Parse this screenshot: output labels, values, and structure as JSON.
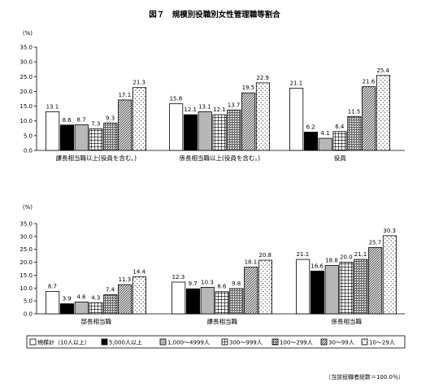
{
  "title": "図７　規模別役職別女性管理職等割合",
  "note": "（当該役職者総数＝100.0％）",
  "legend": [
    "規模計（10人以上）",
    "5,000人以上",
    "1,000～4999人",
    "300～999人",
    "100～299人",
    "30～99人",
    "10～29人"
  ],
  "chart_data": [
    {
      "type": "bar",
      "unit": "(%)",
      "ylim": [
        0,
        35
      ],
      "yticks": [
        "0.0",
        "5.0",
        "10.0",
        "15.0",
        "20.0",
        "25.0",
        "30.0",
        "35.0"
      ],
      "categories": [
        "課長相当職以上(役員を含む。)",
        "係長相当職以上(役員を含む。)",
        "役員"
      ],
      "series": [
        {
          "name": "規模計（10人以上）",
          "values": [
            13.1,
            15.8,
            21.1
          ]
        },
        {
          "name": "5,000人以上",
          "values": [
            8.6,
            12.1,
            6.2
          ]
        },
        {
          "name": "1,000～4999人",
          "values": [
            8.7,
            13.1,
            4.1
          ]
        },
        {
          "name": "300～999人",
          "values": [
            7.3,
            12.1,
            6.4
          ]
        },
        {
          "name": "100～299人",
          "values": [
            9.3,
            13.7,
            11.5
          ]
        },
        {
          "name": "30～99人",
          "values": [
            17.1,
            19.5,
            21.6
          ]
        },
        {
          "name": "10～29人",
          "values": [
            21.3,
            22.9,
            25.4
          ]
        }
      ],
      "labels": [
        [
          "13.1",
          "8.6",
          "8.7",
          "7.3",
          "9.3",
          "17.1",
          "21.3"
        ],
        [
          "15.8",
          "12.1",
          "13.1",
          "12.1",
          "13.7",
          "19.5",
          "22.9"
        ],
        [
          "21.1",
          "6.2",
          "4.1",
          "6.4",
          "11.5",
          "21.6",
          "25.4"
        ]
      ]
    },
    {
      "type": "bar",
      "unit": "(%)",
      "ylim": [
        0,
        35
      ],
      "yticks": [
        "0.0",
        "5.0",
        "10.0",
        "15.0",
        "20.0",
        "25.0",
        "30.0",
        "35.0"
      ],
      "categories": [
        "部長相当職",
        "課長相当職",
        "係長相当職"
      ],
      "series": [
        {
          "name": "規模計（10人以上）",
          "values": [
            8.7,
            12.3,
            21.1
          ]
        },
        {
          "name": "5,000人以上",
          "values": [
            3.9,
            9.7,
            16.6
          ]
        },
        {
          "name": "1,000～4999人",
          "values": [
            4.6,
            10.3,
            18.8
          ]
        },
        {
          "name": "300～999人",
          "values": [
            4.3,
            8.6,
            20.0
          ]
        },
        {
          "name": "100～299人",
          "values": [
            7.4,
            9.8,
            21.1
          ]
        },
        {
          "name": "30～99人",
          "values": [
            11.3,
            18.1,
            25.7
          ]
        },
        {
          "name": "10～29人",
          "values": [
            14.4,
            20.8,
            30.3
          ]
        }
      ],
      "labels": [
        [
          "8.7",
          "3.9",
          "4.6",
          "4.3",
          "7.4",
          "11.3",
          "14.4"
        ],
        [
          "12.3",
          "9.7",
          "10.3",
          "8.6",
          "9.8",
          "18.1",
          "20.8"
        ],
        [
          "21.1",
          "16.6",
          "18.8",
          "20.0",
          "21.1",
          "25.7",
          "30.3"
        ]
      ]
    }
  ]
}
